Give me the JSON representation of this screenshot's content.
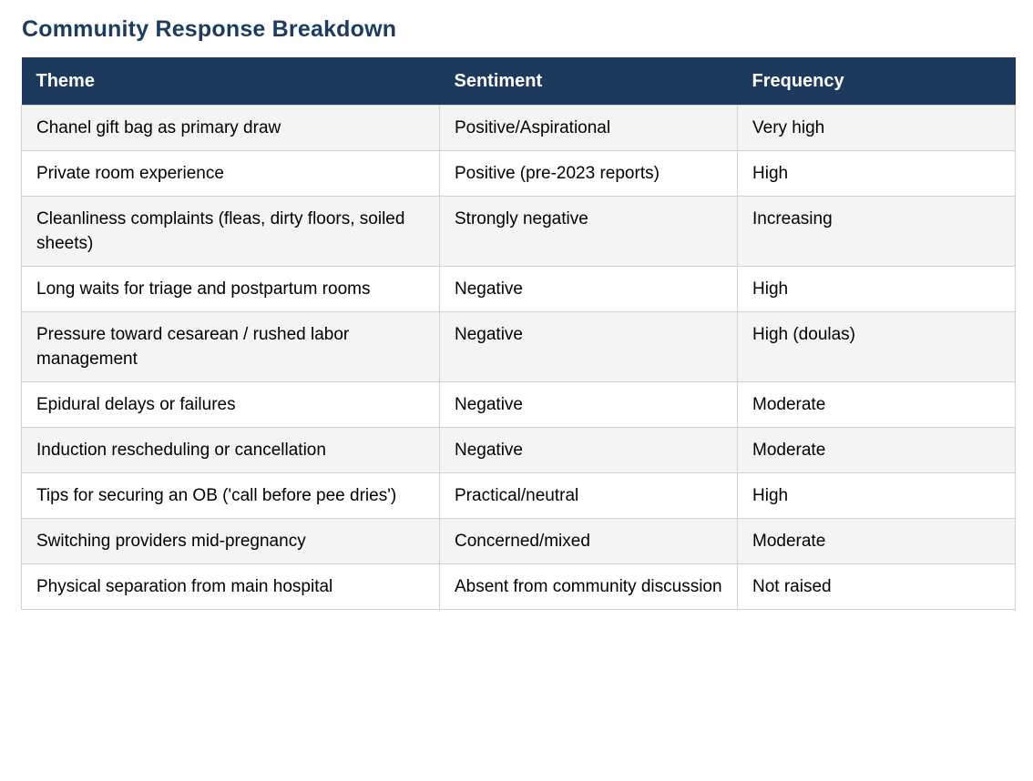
{
  "page": {
    "title": "Community Response Breakdown"
  },
  "colors": {
    "header_bg": "#1d3a5c",
    "header_text": "#ffffff",
    "title_text": "#1d3c60",
    "row_alt_bg": "#f4f4f4",
    "row_bg": "#ffffff",
    "border": "#d2d2d2",
    "body_text": "#000000"
  },
  "chart_data": {
    "type": "table",
    "title": "Community Response Breakdown",
    "columns": [
      "Theme",
      "Sentiment",
      "Frequency"
    ],
    "rows": [
      [
        "Chanel gift bag as primary draw",
        "Positive/Aspirational",
        "Very high"
      ],
      [
        "Private room experience",
        "Positive (pre-2023 reports)",
        "High"
      ],
      [
        "Cleanliness complaints (fleas, dirty floors, soiled sheets)",
        "Strongly negative",
        "Increasing"
      ],
      [
        "Long waits for triage and postpartum rooms",
        "Negative",
        "High"
      ],
      [
        "Pressure toward cesarean / rushed labor management",
        "Negative",
        "High (doulas)"
      ],
      [
        "Epidural delays or failures",
        "Negative",
        "Moderate"
      ],
      [
        "Induction rescheduling or cancellation",
        "Negative",
        "Moderate"
      ],
      [
        "Tips for securing an OB ('call before pee dries')",
        "Practical/neutral",
        "High"
      ],
      [
        "Switching providers mid-pregnancy",
        "Concerned/mixed",
        "Moderate"
      ],
      [
        "Physical separation from main hospital",
        "Absent from community discussion",
        "Not raised"
      ]
    ],
    "layout": {
      "alternating_row_shading": true,
      "header_style": "dark-navy-bar",
      "grid": "light-gray-borders"
    }
  }
}
